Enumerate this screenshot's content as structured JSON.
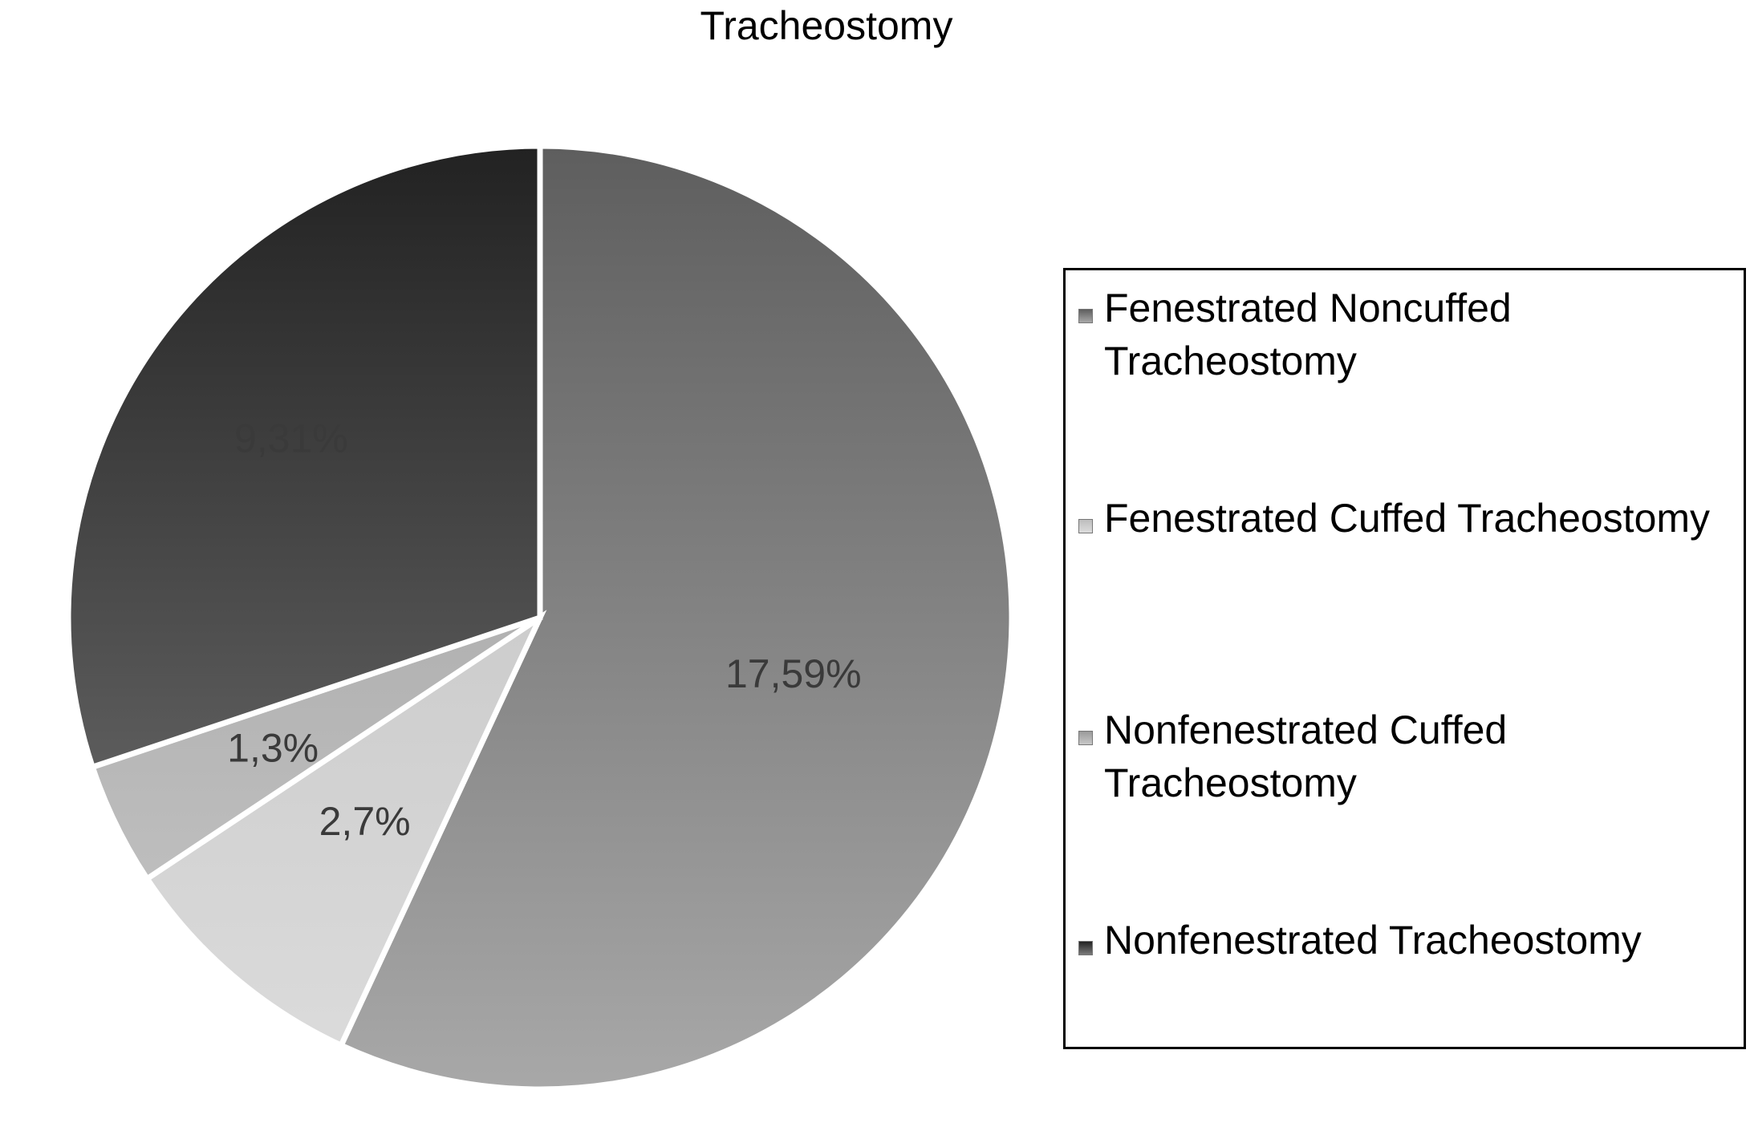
{
  "chart_data": {
    "type": "pie",
    "title": "Tracheostomy",
    "slices": [
      {
        "name": "Fenestrated Noncuffed Tracheostomy",
        "value": 17.59,
        "label": "17,59%",
        "color": "#8a8a8a",
        "grad_light": "#a8a8a8",
        "grad_dark": "#5e5e5e"
      },
      {
        "name": "Fenestrated Cuffed Tracheostomy",
        "value": 2.7,
        "label": "2,7%",
        "color": "#d0d0d0",
        "grad_light": "#dcdcdc",
        "grad_dark": "#bdbdbd"
      },
      {
        "name": "Nonfenestrated Cuffed Tracheostomy",
        "value": 1.3,
        "label": "1,3%",
        "color": "#b5b5b5",
        "grad_light": "#c8c8c8",
        "grad_dark": "#9a9a9a"
      },
      {
        "name": "Nonfenestrated Tracheostomy",
        "value": 9.31,
        "label": "9,31%",
        "color": "#444444",
        "grad_light": "#7a7a7a",
        "grad_dark": "#222222"
      }
    ],
    "legend_position": "right",
    "label_color": "#3a3a3a",
    "separator_color": "#ffffff"
  }
}
